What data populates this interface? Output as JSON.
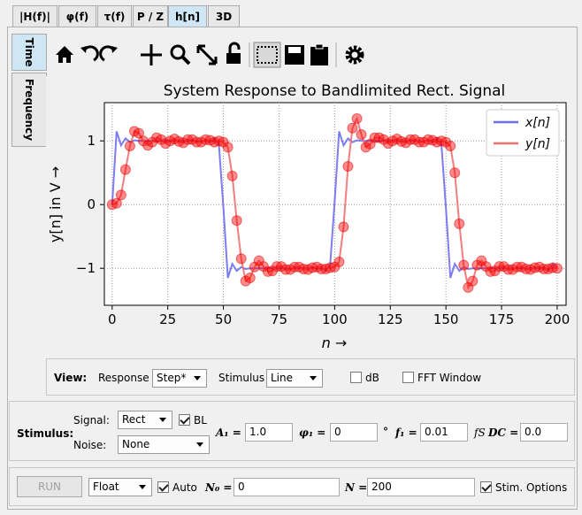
{
  "tabs": [
    "|H(f)|",
    "φ(f)",
    "τ(f)",
    "P / Z",
    "h[n]",
    "3D"
  ],
  "side_tabs": [
    "Time",
    "Frequency"
  ],
  "chart_data": {
    "type": "line",
    "title": "System Response to Bandlimited Rect. Signal",
    "xlabel": "n →",
    "ylabel": "y[n] in V →",
    "x": [
      0,
      2,
      4,
      6,
      8,
      10,
      12,
      14,
      16,
      18,
      20,
      22,
      24,
      26,
      28,
      30,
      32,
      34,
      36,
      38,
      40,
      42,
      44,
      46,
      48,
      50,
      52,
      54,
      56,
      58,
      60,
      62,
      64,
      66,
      68,
      70,
      72,
      74,
      76,
      78,
      80,
      82,
      84,
      86,
      88,
      90,
      92,
      94,
      96,
      98,
      100,
      102,
      104,
      106,
      108,
      110,
      112,
      114,
      116,
      118,
      120,
      122,
      124,
      126,
      128,
      130,
      132,
      134,
      136,
      138,
      140,
      142,
      144,
      146,
      148,
      150,
      152,
      154,
      156,
      158,
      160,
      162,
      164,
      166,
      168,
      170,
      172,
      174,
      176,
      178,
      180,
      182,
      184,
      186,
      188,
      190,
      192,
      194,
      196,
      198,
      200
    ],
    "series": [
      {
        "name": "x[n]",
        "color": "#6e6ef2",
        "values": [
          0,
          1.15,
          0.93,
          1.04,
          0.98,
          1.01,
          1,
          1,
          1,
          1,
          1,
          1,
          1,
          1,
          1,
          1,
          1,
          1,
          1,
          1,
          0.99,
          1.01,
          0.98,
          1.04,
          0.93,
          -0.05,
          -1.15,
          -0.93,
          -1.04,
          -0.98,
          -1.01,
          -1,
          -1,
          -1,
          -1,
          -1,
          -1,
          -1,
          -1,
          -1,
          -1,
          -1,
          -1,
          -1,
          -1,
          -0.99,
          -1.01,
          -0.98,
          -1.04,
          -0.93,
          0.05,
          1.15,
          0.93,
          1.04,
          0.98,
          1.01,
          1,
          1,
          1,
          1,
          1,
          1,
          1,
          1,
          1,
          1,
          1,
          1,
          1,
          1,
          0.99,
          1.01,
          0.98,
          1.04,
          0.93,
          -0.05,
          -1.15,
          -0.93,
          -1.04,
          -0.98,
          -1.01,
          -1,
          -1,
          -1,
          -1,
          -1,
          -1,
          -1,
          -1,
          -1,
          -1,
          -1,
          -1,
          -1,
          -1,
          -0.99,
          -1.01,
          -0.98,
          -1.04,
          -0.93,
          -1
        ]
      },
      {
        "name": "y[n]",
        "color": "#f07070",
        "marker": "o",
        "values": [
          0,
          0.02,
          0.15,
          0.55,
          0.92,
          1.15,
          1.12,
          1.0,
          0.93,
          0.98,
          1.05,
          1.02,
          0.96,
          1.0,
          1.03,
          0.99,
          0.97,
          1.02,
          1.02,
          0.98,
          0.98,
          1.02,
          1.01,
          0.98,
          1.0,
          0.98,
          0.9,
          0.45,
          -0.25,
          -0.85,
          -1.2,
          -1.15,
          -0.98,
          -0.88,
          -0.97,
          -1.05,
          -1.04,
          -0.97,
          -0.97,
          -1.02,
          -1.02,
          -0.98,
          -0.98,
          -1.01,
          -1.02,
          -0.99,
          -0.98,
          -1.01,
          -1.01,
          -0.99,
          -0.98,
          -0.9,
          -0.35,
          0.6,
          1.2,
          1.35,
          1.1,
          0.9,
          0.95,
          1.05,
          1.05,
          1.02,
          0.96,
          1.0,
          1.03,
          0.99,
          0.97,
          1.02,
          1.02,
          0.98,
          0.98,
          1.02,
          1.01,
          0.98,
          1.0,
          0.98,
          0.92,
          0.5,
          -0.3,
          -0.95,
          -1.3,
          -1.2,
          -0.95,
          -0.88,
          -0.97,
          -1.05,
          -1.04,
          -0.97,
          -0.97,
          -1.02,
          -1.02,
          -0.98,
          -0.98,
          -1.01,
          -1.02,
          -0.99,
          -0.98,
          -1.01,
          -1.01,
          -0.99,
          -1.0
        ]
      }
    ],
    "xlim": [
      -3.5,
      204
    ],
    "ylim": [
      -1.58,
      1.6
    ],
    "xticks": [
      0,
      25,
      50,
      75,
      100,
      125,
      150,
      175,
      200
    ],
    "yticks": [
      {
        "value": -1,
        "label": "−1"
      },
      0,
      1
    ],
    "grid": true,
    "legend": "upper right"
  },
  "view": {
    "label": "View:",
    "response_label": "Response",
    "response": "Step*",
    "stimulus_label": "Stimulus",
    "stimulus": "Line",
    "db": "dB",
    "fft": "FFT Window"
  },
  "stimulus": {
    "label": "Stimulus:",
    "signal_label": "Signal:",
    "signal": "Rect",
    "bl": "BL",
    "noise_label": "Noise:",
    "noise": "None",
    "a1_label": "A₁ =",
    "a1": "1.0",
    "phi1_label": "φ₁ =",
    "phi1": "0",
    "deg": "°",
    "f1_label": "f₁ =",
    "f1": "0.01",
    "fs": "fS",
    "dc_label": "DC =",
    "dc": "0.0"
  },
  "run": {
    "button": "RUN",
    "format": "Float",
    "auto": "Auto",
    "n0_label": "N₀ =",
    "n0": "0",
    "n_label": "N =",
    "n": "200",
    "options": "Stim. Options"
  }
}
